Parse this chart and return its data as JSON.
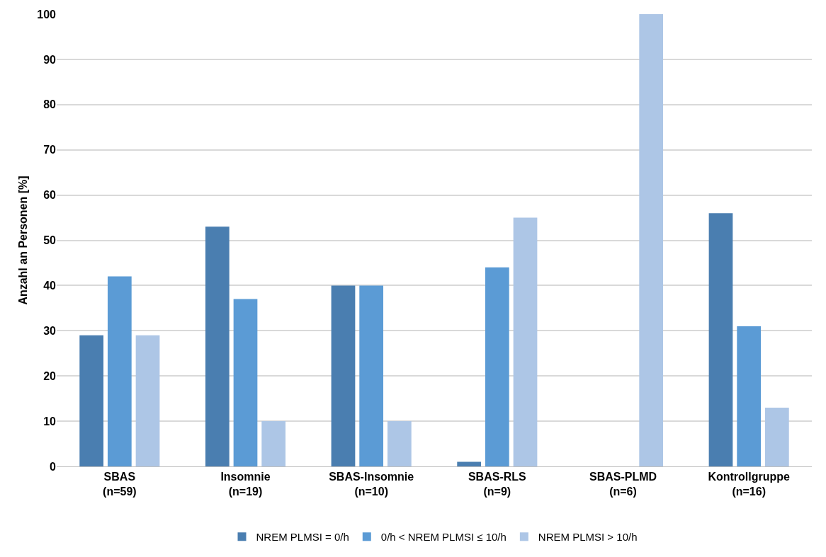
{
  "chart_data": {
    "type": "bar",
    "ylabel": "Anzahl an Personen [%]",
    "categories": [
      "SBAS\n(n=59)",
      "Insomnie\n(n=19)",
      "SBAS-Insomnie\n(n=10)",
      "SBAS-RLS\n(n=9)",
      "SBAS-PLMD\n(n=6)",
      "Kontrollgruppe\n(n=16)"
    ],
    "series": [
      {
        "name": "NREM PLMSI = 0/h",
        "color": "#4a7eb0",
        "values": [
          29,
          53,
          40,
          1,
          0,
          56
        ]
      },
      {
        "name": "0/h < NREM PLMSI ≤ 10/h",
        "color": "#5b9bd5",
        "values": [
          42,
          37,
          40,
          44,
          0,
          31
        ]
      },
      {
        "name": "NREM PLMSI > 10/h",
        "color": "#adc6e6",
        "values": [
          29,
          10,
          10,
          55,
          100,
          13
        ]
      }
    ],
    "ylim": [
      0,
      100
    ],
    "yticks": [
      0,
      10,
      20,
      30,
      40,
      50,
      60,
      70,
      80,
      90,
      100
    ],
    "grid": "y",
    "legend": "bottom"
  }
}
